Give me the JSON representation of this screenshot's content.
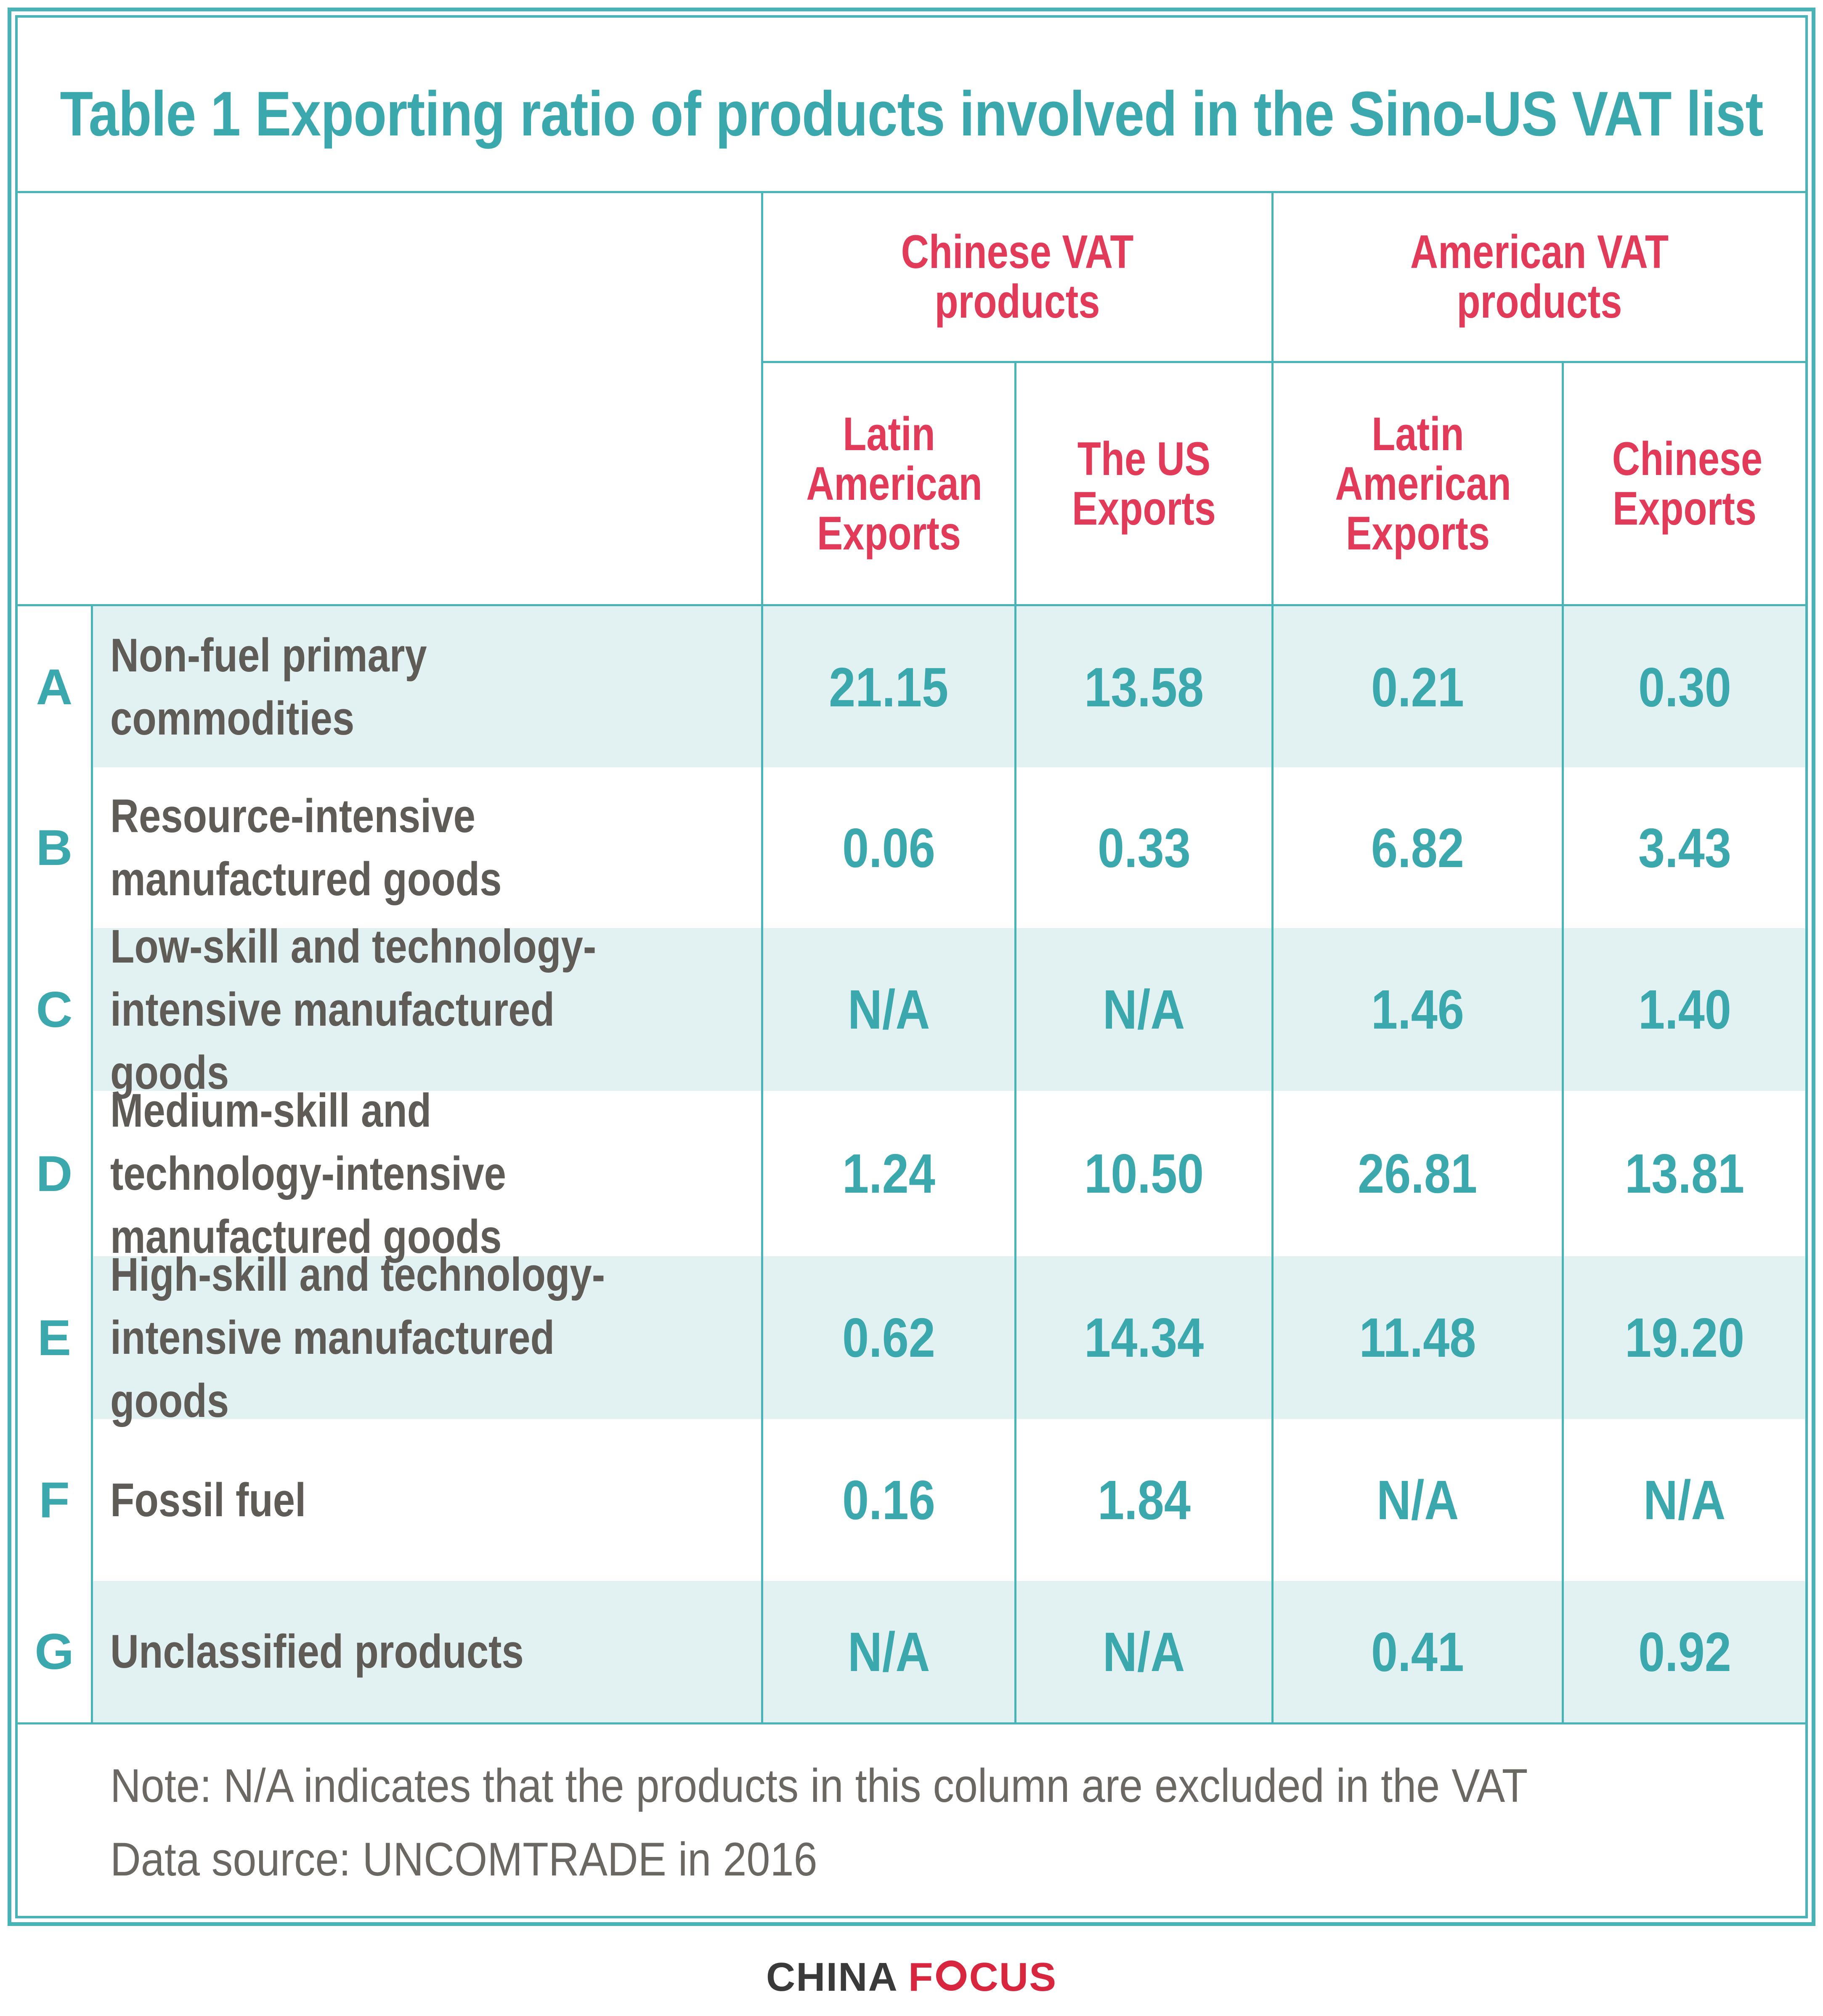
{
  "title": "Table 1 Exporting ratio of products involved in the Sino-US VAT list",
  "groups": [
    {
      "label": "Chinese VAT products"
    },
    {
      "label": "American VAT products"
    }
  ],
  "columns": [
    {
      "label": "Latin American Exports"
    },
    {
      "label": "The US Exports"
    },
    {
      "label": "Latin American Exports"
    },
    {
      "label": "Chinese Exports"
    }
  ],
  "rows": [
    {
      "letter": "A",
      "label": "Non-fuel primary commodities",
      "values": [
        "21.15",
        "13.58",
        "0.21",
        "0.30"
      ]
    },
    {
      "letter": "B",
      "label": "Resource-intensive manufactured goods",
      "values": [
        "0.06",
        "0.33",
        "6.82",
        "3.43"
      ]
    },
    {
      "letter": "C",
      "label": "Low-skill and technology-intensive manufactured goods",
      "values": [
        "N/A",
        "N/A",
        "1.46",
        "1.40"
      ]
    },
    {
      "letter": "D",
      "label": "Medium-skill and technology-intensive manufactured goods",
      "values": [
        "1.24",
        "10.50",
        "26.81",
        "13.81"
      ]
    },
    {
      "letter": "E",
      "label": "High-skill and technology-intensive manufactured goods",
      "values": [
        "0.62",
        "14.34",
        "11.48",
        "19.20"
      ]
    },
    {
      "letter": "F",
      "label": "Fossil fuel",
      "values": [
        "0.16",
        "1.84",
        "N/A",
        "N/A"
      ]
    },
    {
      "letter": "G",
      "label": "Unclassified products",
      "values": [
        "N/A",
        "N/A",
        "0.41",
        "0.92"
      ]
    }
  ],
  "notes": {
    "note": "Note: N/A indicates that the products in this column are excluded in the VAT",
    "source": "Data source: UNCOMTRADE in 2016"
  },
  "logo": {
    "part1": "CHINA",
    "part2a": "F",
    "part2b": "CUS"
  },
  "colors": {
    "accent": "#49b4b8",
    "header": "#e23b5a",
    "row_band": "#e2f2f3",
    "label": "#5f5b56"
  }
}
